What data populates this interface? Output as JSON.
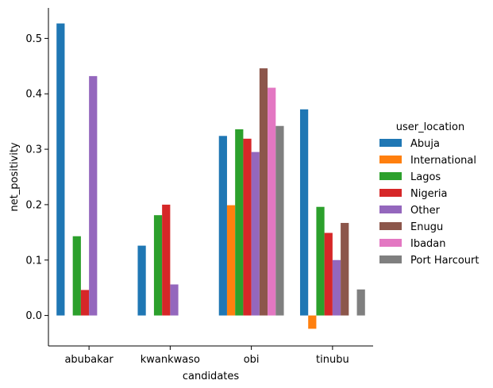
{
  "chart_data": {
    "type": "bar",
    "xlabel": "candidates",
    "ylabel": "net_positivity",
    "categories": [
      "abubakar",
      "kwankwaso",
      "obi",
      "tinubu"
    ],
    "ylim": [
      -0.055,
      0.555
    ],
    "yticks": [
      0.0,
      0.1,
      0.2,
      0.3,
      0.4,
      0.5
    ],
    "ytick_labels": [
      "0.0",
      "0.1",
      "0.2",
      "0.3",
      "0.4",
      "0.5"
    ],
    "legend": {
      "title": "user_location",
      "position": "right"
    },
    "series": [
      {
        "name": "Abuja",
        "color": "#1f77b4",
        "values": [
          0.527,
          0.126,
          0.324,
          0.372
        ]
      },
      {
        "name": "International",
        "color": "#ff7f0e",
        "values": [
          null,
          null,
          0.199,
          -0.024
        ]
      },
      {
        "name": "Lagos",
        "color": "#2ca02c",
        "values": [
          0.143,
          0.181,
          0.336,
          0.196
        ]
      },
      {
        "name": "Nigeria",
        "color": "#d62728",
        "values": [
          0.046,
          0.2,
          0.319,
          0.149
        ]
      },
      {
        "name": "Other",
        "color": "#9467bd",
        "values": [
          0.432,
          0.056,
          0.295,
          0.1
        ]
      },
      {
        "name": "Enugu",
        "color": "#8c564b",
        "values": [
          null,
          null,
          0.446,
          0.167
        ]
      },
      {
        "name": "Ibadan",
        "color": "#e377c2",
        "values": [
          null,
          null,
          0.411,
          null
        ]
      },
      {
        "name": "Port Harcourt",
        "color": "#7f7f7f",
        "values": [
          null,
          null,
          0.342,
          0.047
        ]
      }
    ]
  }
}
